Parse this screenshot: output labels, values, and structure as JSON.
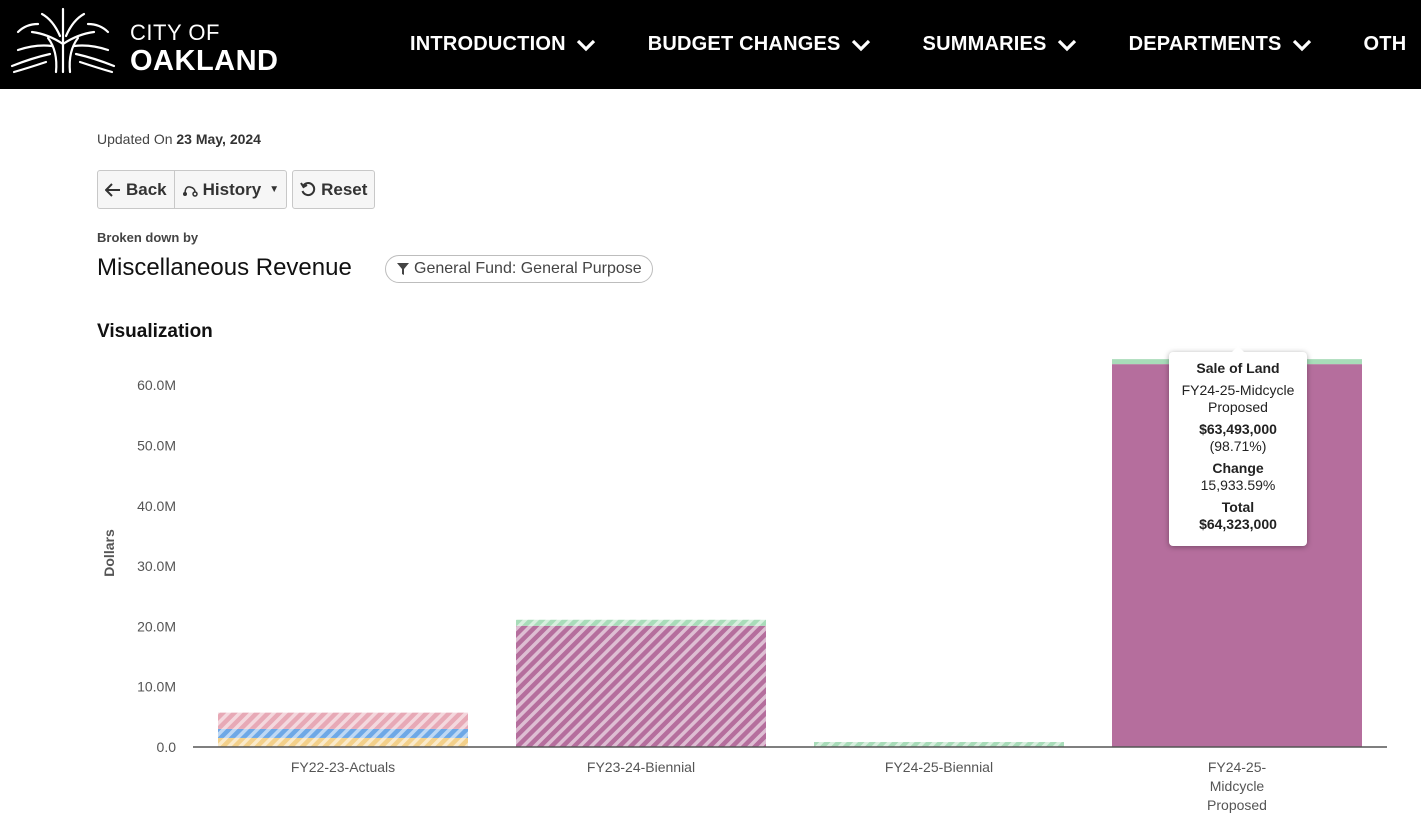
{
  "header": {
    "brand_line1": "CITY OF",
    "brand_line2": "OAKLAND",
    "nav": [
      "INTRODUCTION",
      "BUDGET CHANGES",
      "SUMMARIES",
      "DEPARTMENTS",
      "OTH"
    ]
  },
  "updated": {
    "prefix": "Updated On",
    "date": "23 May, 2024"
  },
  "toolbar": {
    "back_label": "Back",
    "history_label": "History",
    "reset_label": "Reset"
  },
  "breakdown": {
    "label": "Broken down by",
    "title": "Miscellaneous Revenue"
  },
  "filter": {
    "label": "General Fund: General Purpose"
  },
  "viz_title": "Visualization",
  "colors": {
    "header_bg": "#000000",
    "magenta": "#b56e9d",
    "green": "#a8dcb9",
    "pink": "#e7a9b6",
    "blue": "#6ea8e6",
    "yellow": "#f3d08a"
  },
  "chart_data": {
    "type": "bar",
    "stacked": true,
    "ylabel": "Dollars",
    "ylim": [
      0,
      65000000
    ],
    "yticks": [
      "0.0",
      "10.0M",
      "20.0M",
      "30.0M",
      "40.0M",
      "50.0M",
      "60.0M"
    ],
    "ytick_values": [
      0,
      10000000,
      20000000,
      30000000,
      40000000,
      50000000,
      60000000
    ],
    "categories": [
      [
        "FY22-23-Actuals"
      ],
      [
        "FY23-24-Biennial"
      ],
      [
        "FY24-25-Biennial"
      ],
      [
        "FY24-25-",
        "Midcycle",
        "Proposed"
      ]
    ],
    "bars": [
      {
        "hatched": true,
        "segments": [
          {
            "color": "#f3d08a",
            "value": 1500000
          },
          {
            "color": "#6ea8e6",
            "value": 1500000
          },
          {
            "color": "#e7a9b6",
            "value": 2700000
          }
        ]
      },
      {
        "hatched": true,
        "segments": [
          {
            "color": "#b56e9d",
            "value": 20100000
          },
          {
            "color": "#a8dcb9",
            "value": 1000000
          }
        ]
      },
      {
        "hatched": true,
        "segments": [
          {
            "color": "#a8dcb9",
            "value": 830000
          }
        ]
      },
      {
        "hatched": false,
        "segments": [
          {
            "color": "#b56e9d",
            "value": 63493000
          },
          {
            "color": "#a8dcb9",
            "value": 830000
          }
        ]
      }
    ]
  },
  "tooltip": {
    "title": "Sale of Land",
    "series_line1": "FY24-25-Midcycle",
    "series_line2": "Proposed",
    "amount": "$63,493,000",
    "percent": "(98.71%)",
    "change_label": "Change",
    "change_value": "15,933.59%",
    "total_label": "Total",
    "total_value": "$64,323,000"
  }
}
